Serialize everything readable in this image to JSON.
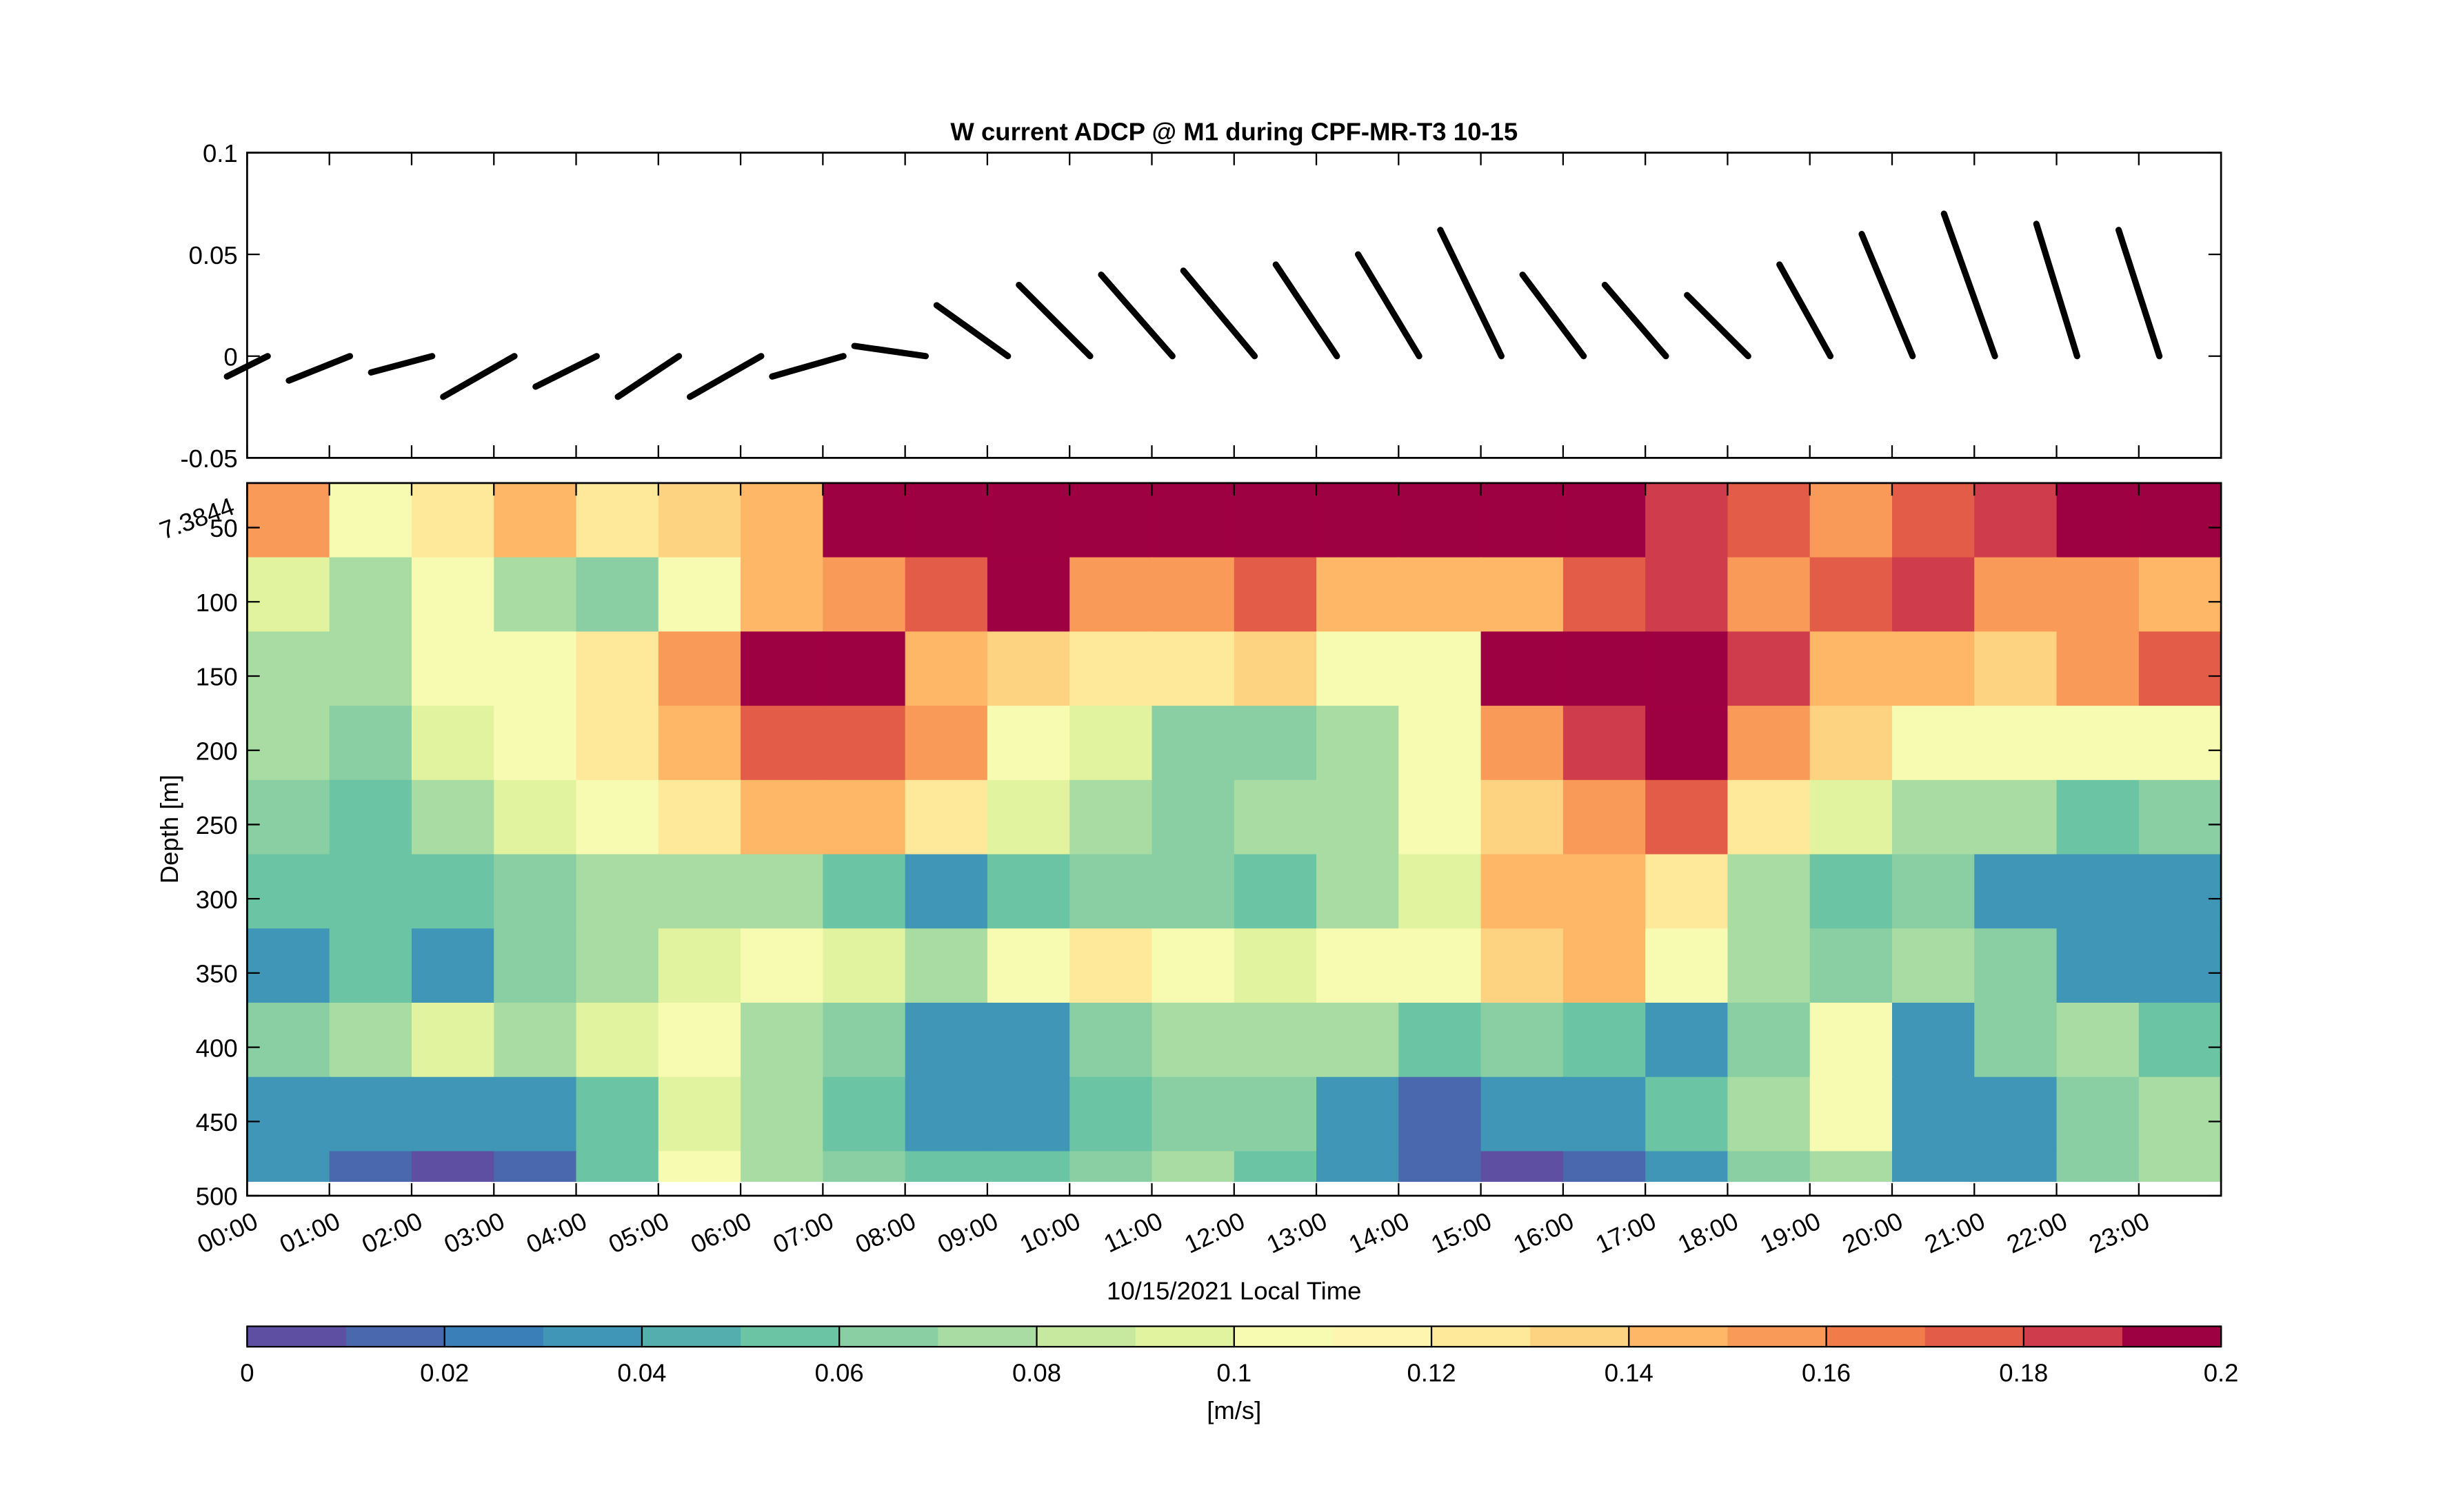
{
  "chart_data": [
    {
      "type": "quiver",
      "title": "W current ADCP @ M1 during CPF-MR-T3 10-15",
      "x": [
        0.25,
        1.25,
        2.25,
        3.25,
        4.25,
        5.25,
        6.25,
        7.25,
        8.25,
        9.25,
        10.25,
        11.25,
        12.25,
        13.25,
        14.25,
        15.25,
        16.25,
        17.25,
        18.25,
        19.25,
        20.25,
        21.25,
        22.25,
        23.25
      ],
      "u": [
        -0.02,
        -0.03,
        -0.03,
        -0.035,
        -0.03,
        -0.03,
        -0.035,
        -0.035,
        -0.035,
        -0.035,
        -0.035,
        -0.035,
        -0.035,
        -0.03,
        -0.03,
        -0.03,
        -0.03,
        -0.03,
        -0.03,
        -0.025,
        -0.025,
        -0.025,
        -0.02,
        -0.02
      ],
      "v": [
        -0.01,
        -0.012,
        -0.008,
        -0.02,
        -0.015,
        -0.02,
        -0.02,
        -0.01,
        0.005,
        0.025,
        0.035,
        0.04,
        0.042,
        0.045,
        0.05,
        0.062,
        0.04,
        0.035,
        0.03,
        0.045,
        0.06,
        0.07,
        0.065,
        0.062
      ],
      "color": "#000000",
      "xlim": [
        0,
        24
      ],
      "ylim": [
        -0.05,
        0.1
      ],
      "yticks": [
        -0.05,
        0,
        0.05,
        0.1
      ]
    },
    {
      "type": "heatmap",
      "xlabel": "10/15/2021 Local Time",
      "ylabel": "Depth [m]",
      "annotation": "7.3844",
      "xbins": [
        0,
        1,
        2,
        3,
        4,
        5,
        6,
        7,
        8,
        9,
        10,
        11,
        12,
        13,
        14,
        15,
        16,
        17,
        18,
        19,
        20,
        21,
        22,
        23,
        24
      ],
      "ybins": [
        20,
        70,
        120,
        170,
        220,
        270,
        320,
        370,
        420,
        470,
        490
      ],
      "values": [
        [
          0.16,
          0.1,
          0.12,
          0.15,
          0.12,
          0.13,
          0.15,
          0.19,
          0.2,
          0.2,
          0.2,
          0.2,
          0.2,
          0.2,
          0.2,
          0.2,
          0.2,
          0.18,
          0.17,
          0.16,
          0.17,
          0.18,
          0.19,
          0.2
        ],
        [
          0.09,
          0.07,
          0.1,
          0.08,
          0.06,
          0.1,
          0.14,
          0.16,
          0.17,
          0.19,
          0.16,
          0.16,
          0.17,
          0.14,
          0.15,
          0.15,
          0.17,
          0.18,
          0.16,
          0.17,
          0.18,
          0.16,
          0.16,
          0.15
        ],
        [
          0.08,
          0.07,
          0.1,
          0.11,
          0.12,
          0.16,
          0.19,
          0.19,
          0.15,
          0.13,
          0.12,
          0.12,
          0.13,
          0.11,
          0.11,
          0.19,
          0.19,
          0.19,
          0.18,
          0.15,
          0.14,
          0.13,
          0.16,
          0.17
        ],
        [
          0.07,
          0.06,
          0.09,
          0.11,
          0.12,
          0.15,
          0.17,
          0.17,
          0.16,
          0.11,
          0.09,
          0.06,
          0.06,
          0.08,
          0.1,
          0.16,
          0.18,
          0.19,
          0.16,
          0.13,
          0.1,
          0.11,
          0.1,
          0.1
        ],
        [
          0.06,
          0.05,
          0.07,
          0.09,
          0.1,
          0.12,
          0.14,
          0.15,
          0.12,
          0.09,
          0.07,
          0.06,
          0.07,
          0.08,
          0.1,
          0.13,
          0.16,
          0.17,
          0.12,
          0.09,
          0.08,
          0.07,
          0.05,
          0.06
        ],
        [
          0.05,
          0.05,
          0.05,
          0.06,
          0.07,
          0.08,
          0.07,
          0.05,
          0.03,
          0.05,
          0.06,
          0.06,
          0.05,
          0.07,
          0.09,
          0.14,
          0.15,
          0.12,
          0.07,
          0.05,
          0.06,
          0.04,
          0.03,
          0.04
        ],
        [
          0.03,
          0.05,
          0.04,
          0.06,
          0.08,
          0.09,
          0.1,
          0.09,
          0.08,
          0.1,
          0.12,
          0.1,
          0.09,
          0.1,
          0.1,
          0.13,
          0.14,
          0.1,
          0.07,
          0.06,
          0.07,
          0.06,
          0.04,
          0.04
        ],
        [
          0.06,
          0.08,
          0.09,
          0.08,
          0.09,
          0.1,
          0.08,
          0.06,
          0.04,
          0.03,
          0.06,
          0.07,
          0.08,
          0.07,
          0.05,
          0.06,
          0.05,
          0.04,
          0.06,
          0.1,
          0.04,
          0.06,
          0.07,
          0.05
        ],
        [
          0.04,
          0.03,
          0.04,
          0.04,
          0.05,
          0.09,
          0.07,
          0.05,
          0.03,
          0.03,
          0.05,
          0.06,
          0.06,
          0.04,
          0.02,
          0.03,
          0.03,
          0.05,
          0.07,
          0.1,
          0.03,
          0.04,
          0.06,
          0.07
        ],
        [
          0.03,
          0.02,
          0.01,
          0.02,
          0.05,
          0.1,
          0.08,
          0.06,
          0.05,
          0.05,
          0.06,
          0.07,
          0.05,
          0.03,
          0.02,
          0.01,
          0.02,
          0.04,
          0.06,
          0.08,
          0.04,
          0.03,
          0.06,
          0.07
        ]
      ],
      "xlim": [
        0,
        24
      ],
      "xticks": [
        {
          "value": 0,
          "label": "00:00"
        },
        {
          "value": 1,
          "label": "01:00"
        },
        {
          "value": 2,
          "label": "02:00"
        },
        {
          "value": 3,
          "label": "03:00"
        },
        {
          "value": 4,
          "label": "04:00"
        },
        {
          "value": 5,
          "label": "05:00"
        },
        {
          "value": 6,
          "label": "06:00"
        },
        {
          "value": 7,
          "label": "07:00"
        },
        {
          "value": 8,
          "label": "08:00"
        },
        {
          "value": 9,
          "label": "09:00"
        },
        {
          "value": 10,
          "label": "10:00"
        },
        {
          "value": 11,
          "label": "11:00"
        },
        {
          "value": 12,
          "label": "12:00"
        },
        {
          "value": 13,
          "label": "13:00"
        },
        {
          "value": 14,
          "label": "14:00"
        },
        {
          "value": 15,
          "label": "15:00"
        },
        {
          "value": 16,
          "label": "16:00"
        },
        {
          "value": 17,
          "label": "17:00"
        },
        {
          "value": 18,
          "label": "18:00"
        },
        {
          "value": 19,
          "label": "19:00"
        },
        {
          "value": 20,
          "label": "20:00"
        },
        {
          "value": 21,
          "label": "21:00"
        },
        {
          "value": 22,
          "label": "22:00"
        },
        {
          "value": 23,
          "label": "23:00"
        }
      ],
      "ylim": [
        20,
        500
      ],
      "yticks": [
        50,
        100,
        150,
        200,
        250,
        300,
        350,
        400,
        450,
        500
      ],
      "yreversed": true,
      "colorbar": {
        "label": "[m/s]",
        "clim": [
          0,
          0.2
        ],
        "cticks": [
          0,
          0.02,
          0.04,
          0.06,
          0.08,
          0.1,
          0.12,
          0.14,
          0.16,
          0.18,
          0.2
        ],
        "colors": [
          "#5e4fa2",
          "#4a68ad",
          "#3a7fb8",
          "#3f96b7",
          "#54aead",
          "#6bc4a4",
          "#8acfa4",
          "#a8dca2",
          "#c6e89f",
          "#e1f39e",
          "#f7fbb1",
          "#fef6b0",
          "#fee89a",
          "#fdd280",
          "#fdb767",
          "#f99a58",
          "#f27b4a",
          "#e35c47",
          "#cf3d4c",
          "#9e0142"
        ]
      }
    }
  ]
}
